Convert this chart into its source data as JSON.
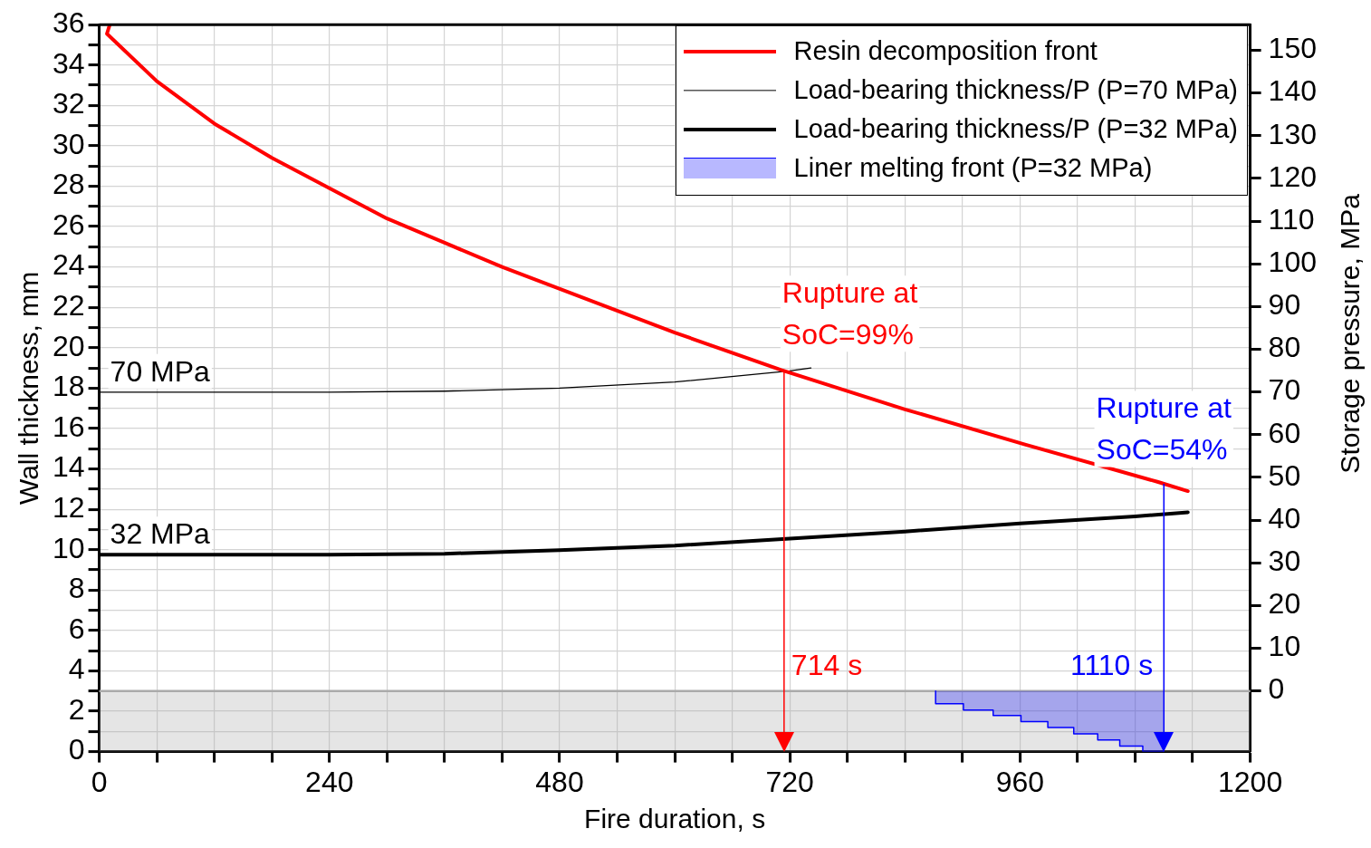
{
  "chart_data": {
    "type": "line",
    "xlabel": "Fire duration, s",
    "ylabel": "Wall thickness, mm",
    "y2label": "Storage pressure, MPa",
    "xlim": [
      0,
      1200
    ],
    "xticks": [
      0,
      {
        "value": 60,
        "label": null
      },
      {
        "value": 120,
        "label": null
      },
      {
        "value": 180,
        "label": null
      },
      240,
      {
        "value": 300,
        "label": null
      },
      {
        "value": 360,
        "label": null
      },
      {
        "value": 420,
        "label": null
      },
      480,
      {
        "value": 540,
        "label": null
      },
      {
        "value": 600,
        "label": null
      },
      {
        "value": 660,
        "label": null
      },
      720,
      {
        "value": 780,
        "label": null
      },
      {
        "value": 840,
        "label": null
      },
      {
        "value": 900,
        "label": null
      },
      960,
      {
        "value": 1020,
        "label": null
      },
      {
        "value": 1080,
        "label": null
      },
      {
        "value": 1140,
        "label": null
      },
      1200
    ],
    "ylim": [
      0,
      36
    ],
    "yticks": [
      0,
      {
        "value": 1,
        "label": null
      },
      2,
      {
        "value": 3,
        "label": null
      },
      4,
      {
        "value": 5,
        "label": null
      },
      6,
      {
        "value": 7,
        "label": null
      },
      8,
      {
        "value": 9,
        "label": null
      },
      10,
      {
        "value": 11,
        "label": null
      },
      12,
      {
        "value": 13,
        "label": null
      },
      14,
      {
        "value": 15,
        "label": null
      },
      16,
      {
        "value": 17,
        "label": null
      },
      18,
      {
        "value": 19,
        "label": null
      },
      20,
      {
        "value": 21,
        "label": null
      },
      22,
      {
        "value": 23,
        "label": null
      },
      24,
      {
        "value": 25,
        "label": null
      },
      26,
      {
        "value": 27,
        "label": null
      },
      28,
      {
        "value": 29,
        "label": null
      },
      30,
      {
        "value": 31,
        "label": null
      },
      32,
      {
        "value": 33,
        "label": null
      },
      34,
      {
        "value": 35,
        "label": null
      },
      36
    ],
    "y2lim": [
      -14.2,
      156
    ],
    "y2ticks": [
      0,
      10,
      20,
      30,
      40,
      50,
      60,
      70,
      80,
      90,
      100,
      110,
      120,
      130,
      140,
      150
    ],
    "grid": true,
    "legend": "top right",
    "marker": "none",
    "line_style": "solid",
    "series": [
      {
        "name": "Resin decomposition front",
        "color": "#ff0000",
        "x": [
          11,
          8,
          60,
          120,
          180,
          240,
          300,
          360,
          420,
          492,
          600,
          711,
          840,
          966,
          1104,
          1135
        ],
        "values": [
          36,
          35.55,
          33.2,
          31.1,
          29.4,
          27.9,
          26.4,
          25.2,
          24.0,
          22.7,
          20.75,
          18.9,
          16.95,
          15.2,
          13.35,
          12.9
        ]
      },
      {
        "name": "Load-bearing thickness/P (P=70 MPa)",
        "color": "#000000",
        "x": [
          0,
          120,
          240,
          360,
          480,
          600,
          720,
          742
        ],
        "values": [
          17.8,
          17.8,
          17.8,
          17.85,
          18.0,
          18.3,
          18.85,
          19.0
        ]
      },
      {
        "name": "Load-bearing thickness/P (P=32 MPa)",
        "color": "#000000",
        "x": [
          0,
          120,
          240,
          360,
          480,
          600,
          720,
          840,
          960,
          1080,
          1135
        ],
        "values": [
          9.75,
          9.75,
          9.75,
          9.8,
          9.98,
          10.2,
          10.55,
          10.9,
          11.3,
          11.65,
          11.85
        ]
      },
      {
        "name": "Liner melting front (P=32 MPa)",
        "type": "step",
        "color": "#0000ff",
        "x": [
          872,
          872,
          901,
          932,
          961,
          989,
          1016,
          1041,
          1064,
          1088,
          1110
        ],
        "values": [
          3,
          2.69,
          2.37,
          2.06,
          1.79,
          1.49,
          1.19,
          0.88,
          0.58,
          0.27,
          0
        ]
      }
    ],
    "bands": [
      {
        "axis": "y",
        "from": 0,
        "to": 3,
        "color": "#aaaaaa"
      }
    ],
    "ref_lines": [
      {
        "axis": "x",
        "value": 714,
        "label": "714 s",
        "color": "#ff0000"
      },
      {
        "axis": "x",
        "value": 1110,
        "label": "1110 s",
        "color": "#0000ff"
      }
    ],
    "annotations": [
      {
        "text": "70 MPa",
        "x": 0,
        "y": 17.8
      },
      {
        "text": "32 MPa",
        "x": 0,
        "y": 9.75
      },
      {
        "text": "Rupture at\nSoC=99%",
        "x": 714,
        "y": 18.9
      },
      {
        "text": "Rupture at\nSoC=54%",
        "x": 1110,
        "y": 13.2
      }
    ]
  }
}
